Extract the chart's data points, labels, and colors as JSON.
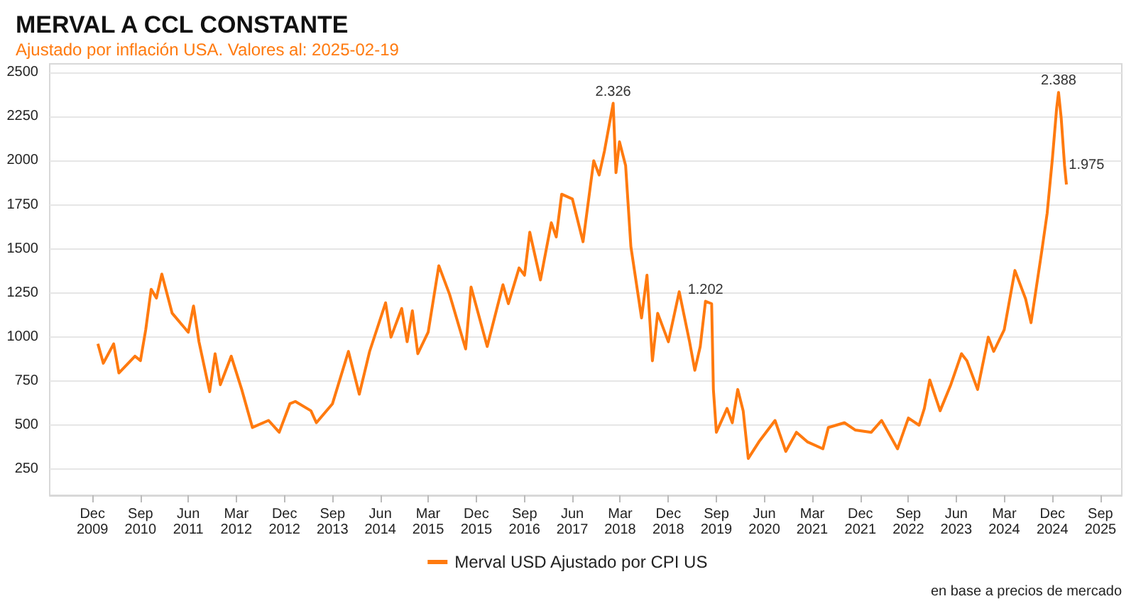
{
  "chart_data": {
    "type": "line",
    "title": "MERVAL A CCL CONSTANTE",
    "subtitle": "Ajustado por inflación USA. Valores al: 2025-02-19",
    "annotations": [
      "en base a precios de mercado"
    ],
    "xlim": [
      "2009-04",
      "2026-01"
    ],
    "xticks": [
      {
        "value": "2009-12",
        "label": "Dec 2009"
      },
      {
        "value": "2010-09",
        "label": "Sep 2010"
      },
      {
        "value": "2011-06",
        "label": "Jun 2011"
      },
      {
        "value": "2012-03",
        "label": "Mar 2012"
      },
      {
        "value": "2012-12",
        "label": "Dec 2012"
      },
      {
        "value": "2013-09",
        "label": "Sep 2013"
      },
      {
        "value": "2014-06",
        "label": "Jun 2014"
      },
      {
        "value": "2015-03",
        "label": "Mar 2015"
      },
      {
        "value": "2015-12",
        "label": "Dec 2015"
      },
      {
        "value": "2016-09",
        "label": "Sep 2016"
      },
      {
        "value": "2017-06",
        "label": "Jun 2017"
      },
      {
        "value": "2018-03",
        "label": "Mar 2018"
      },
      {
        "value": "2018-12",
        "label": "Dec 2018"
      },
      {
        "value": "2019-09",
        "label": "Sep 2019"
      },
      {
        "value": "2020-06",
        "label": "Jun 2020"
      },
      {
        "value": "2021-03",
        "label": "Mar 2021"
      },
      {
        "value": "2021-12",
        "label": "Dec 2021"
      },
      {
        "value": "2022-09",
        "label": "Sep 2022"
      },
      {
        "value": "2023-06",
        "label": "Jun 2023"
      },
      {
        "value": "2024-03",
        "label": "Mar 2024"
      },
      {
        "value": "2024-12",
        "label": "Dec 2024"
      },
      {
        "value": "2025-09",
        "label": "Sep 2025"
      }
    ],
    "ylim": [
      100,
      2550
    ],
    "yticks": [
      250,
      500,
      750,
      1000,
      1250,
      1500,
      1750,
      2000,
      2250,
      2500
    ],
    "grid": "y",
    "legend": "bottom",
    "series": [
      {
        "name": "Merval USD Ajustado por CPI US",
        "color": "#ff7a0f",
        "x": [
          "2010-01",
          "2010-02",
          "2010-04",
          "2010-05",
          "2010-08",
          "2010-09",
          "2010-10",
          "2010-11",
          "2010-12",
          "2011-01",
          "2011-03",
          "2011-06",
          "2011-07",
          "2011-08",
          "2011-10",
          "2011-11",
          "2011-12",
          "2012-02",
          "2012-04",
          "2012-06",
          "2012-09",
          "2012-11",
          "2013-01",
          "2013-02",
          "2013-05",
          "2013-06",
          "2013-09",
          "2013-12",
          "2014-02",
          "2014-04",
          "2014-07",
          "2014-08",
          "2014-10",
          "2014-11",
          "2014-12",
          "2015-01",
          "2015-03",
          "2015-05",
          "2015-07",
          "2015-10",
          "2015-11",
          "2016-02",
          "2016-05",
          "2016-06",
          "2016-08",
          "2016-09",
          "2016-10",
          "2016-12",
          "2017-02",
          "2017-03",
          "2017-04",
          "2017-06",
          "2017-08",
          "2017-10",
          "2017-11",
          "2017-12",
          "2018-01-20",
          "2018-02-05",
          "2018-02-25",
          "2018-04",
          "2018-05",
          "2018-07",
          "2018-08",
          "2018-09",
          "2018-10",
          "2018-12",
          "2019-02",
          "2019-04",
          "2019-05",
          "2019-06",
          "2019-07",
          "2019-08-05",
          "2019-08-15",
          "2019-09",
          "2019-11",
          "2019-12",
          "2020-01",
          "2020-02",
          "2020-03",
          "2020-05",
          "2020-08",
          "2020-10",
          "2020-12",
          "2021-02",
          "2021-05",
          "2021-06",
          "2021-09",
          "2021-11",
          "2022-02",
          "2022-04",
          "2022-07",
          "2022-09",
          "2022-11",
          "2022-12",
          "2023-01",
          "2023-03",
          "2023-05",
          "2023-07",
          "2023-08",
          "2023-10",
          "2023-12",
          "2024-01",
          "2024-03",
          "2024-05",
          "2024-07",
          "2024-08",
          "2024-10",
          "2024-11",
          "2024-12-01",
          "2024-12-25",
          "2025-01-05",
          "2025-01-20",
          "2025-02-08",
          "2025-02-19"
        ],
        "values": [
          960,
          850,
          960,
          795,
          890,
          865,
          1040,
          1270,
          1220,
          1356,
          1134,
          1026,
          1175,
          972,
          688,
          904,
          728,
          890,
          701,
          485,
          525,
          458,
          620,
          633,
          580,
          512,
          620,
          917,
          674,
          917,
          1193,
          998,
          1161,
          972,
          1148,
          904,
          1026,
          1404,
          1242,
          931,
          1283,
          945,
          1296,
          1188,
          1391,
          1350,
          1594,
          1323,
          1648,
          1567,
          1810,
          1783,
          1540,
          2000,
          1919,
          2054,
          2326,
          1932,
          2108,
          1973,
          1513,
          1107,
          1350,
          864,
          1134,
          972,
          1256,
          972,
          810,
          945,
          1202,
          1188,
          701,
          458,
          593,
          512,
          701,
          580,
          309,
          404,
          525,
          349,
          458,
          404,
          364,
          485,
          512,
          471,
          458,
          525,
          364,
          539,
          498,
          593,
          755,
          580,
          728,
          904,
          864,
          701,
          998,
          917,
          1040,
          1377,
          1215,
          1080,
          1485,
          1702,
          2013,
          2297,
          2388,
          2244,
          1975,
          1865
        ],
        "value_labels": [
          null,
          null,
          null,
          null,
          null,
          null,
          null,
          null,
          null,
          null,
          null,
          null,
          null,
          null,
          null,
          null,
          null,
          null,
          null,
          null,
          null,
          null,
          null,
          null,
          null,
          null,
          null,
          null,
          null,
          null,
          null,
          null,
          null,
          null,
          null,
          null,
          null,
          null,
          null,
          null,
          null,
          null,
          null,
          null,
          null,
          null,
          null,
          null,
          null,
          null,
          null,
          null,
          null,
          null,
          null,
          null,
          "2.326",
          null,
          null,
          null,
          null,
          null,
          null,
          null,
          null,
          null,
          null,
          null,
          null,
          null,
          "1.202",
          null,
          null,
          null,
          null,
          null,
          null,
          null,
          null,
          null,
          null,
          null,
          null,
          null,
          null,
          null,
          null,
          null,
          null,
          null,
          null,
          null,
          null,
          null,
          null,
          null,
          null,
          null,
          null,
          null,
          null,
          null,
          null,
          null,
          null,
          null,
          null,
          null,
          null,
          null,
          "2.388",
          null,
          "1.975",
          null
        ]
      }
    ]
  }
}
